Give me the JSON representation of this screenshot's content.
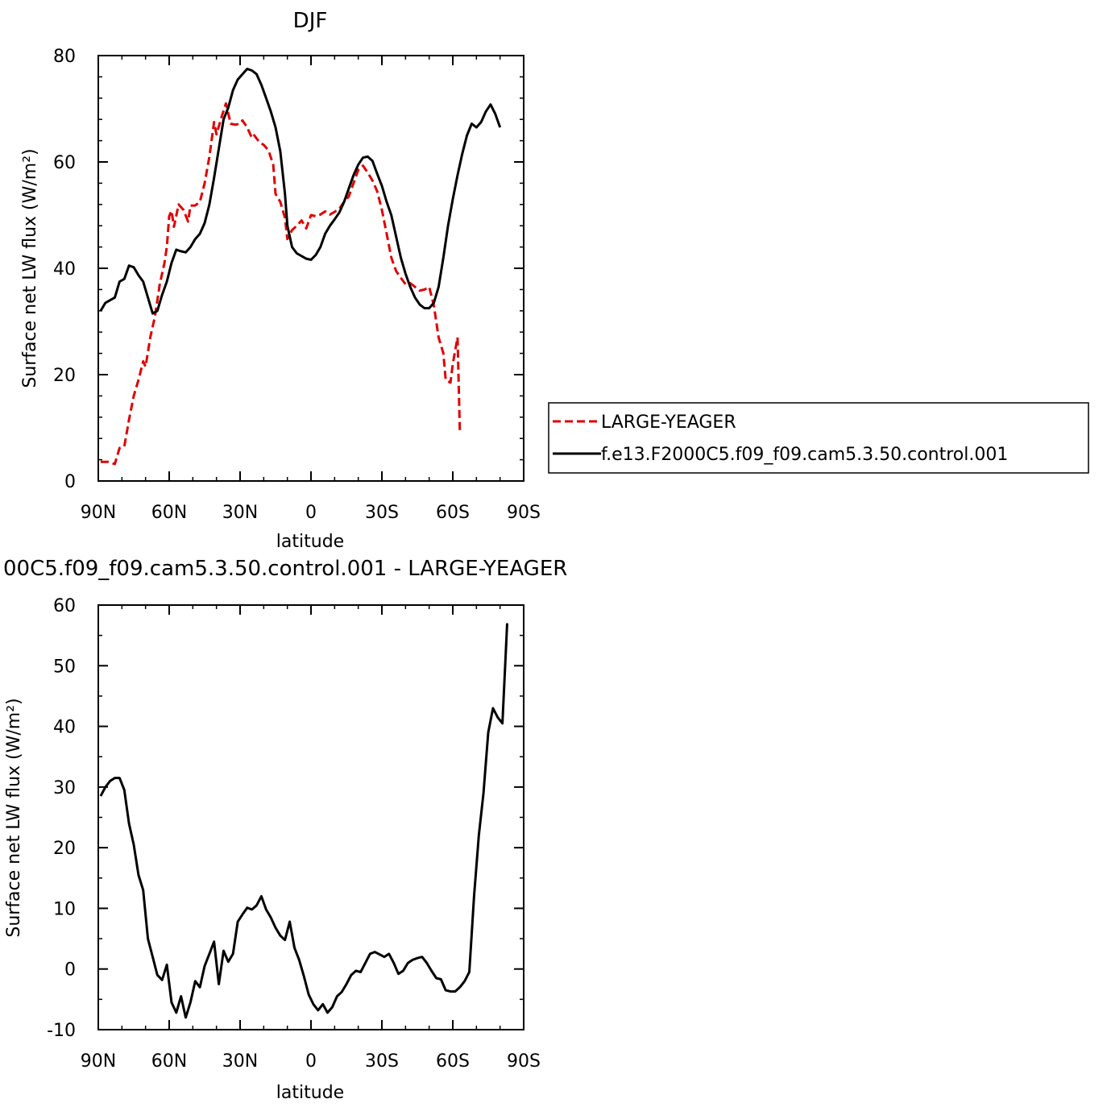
{
  "chart_data": [
    {
      "type": "line",
      "title": "DJF",
      "xlabel": "latitude",
      "ylabel": "Surface net LW flux (W/m²)",
      "xlim": [
        90,
        -90
      ],
      "ylim": [
        0,
        80
      ],
      "xticks": [
        {
          "value": 90,
          "label": "90N"
        },
        {
          "value": 60,
          "label": "60N"
        },
        {
          "value": 30,
          "label": "30N"
        },
        {
          "value": 0,
          "label": "0"
        },
        {
          "value": -30,
          "label": "30S"
        },
        {
          "value": -60,
          "label": "60S"
        },
        {
          "value": -90,
          "label": "90S"
        }
      ],
      "yticks": [
        {
          "value": 0,
          "label": "0"
        },
        {
          "value": 20,
          "label": "20"
        },
        {
          "value": 40,
          "label": "40"
        },
        {
          "value": 60,
          "label": "60"
        },
        {
          "value": 80,
          "label": "80"
        }
      ],
      "legend_position": "right",
      "series": [
        {
          "name": "LARGE-YEAGER",
          "color": "#e00000",
          "dash": "dashed",
          "points": [
            [
              89,
              3.6
            ],
            [
              86,
              3.6
            ],
            [
              83,
              3.2
            ],
            [
              81,
              6.2
            ],
            [
              79,
              6.5
            ],
            [
              77,
              11.5
            ],
            [
              75,
              16
            ],
            [
              73,
              19
            ],
            [
              71,
              22.5
            ],
            [
              70,
              21.5
            ],
            [
              68,
              27
            ],
            [
              66,
              31
            ],
            [
              64,
              37
            ],
            [
              62,
              41
            ],
            [
              61,
              44
            ],
            [
              60,
              49.8
            ],
            [
              59,
              50.8
            ],
            [
              58,
              47.8
            ],
            [
              56,
              52
            ],
            [
              54,
              51
            ],
            [
              52,
              48.8
            ],
            [
              51,
              51.8
            ],
            [
              49,
              51.8
            ],
            [
              47,
              52.5
            ],
            [
              45,
              56
            ],
            [
              43,
              61
            ],
            [
              41,
              67.5
            ],
            [
              40,
              65.2
            ],
            [
              38,
              68.2
            ],
            [
              36,
              71
            ],
            [
              34,
              67.2
            ],
            [
              32,
              67
            ],
            [
              30,
              67.2
            ],
            [
              29,
              67.8
            ],
            [
              27,
              66.5
            ],
            [
              25,
              64.5
            ],
            [
              24,
              65
            ],
            [
              22,
              63.8
            ],
            [
              20,
              63.2
            ],
            [
              18,
              62.2
            ],
            [
              16,
              59.5
            ],
            [
              15,
              54
            ],
            [
              13,
              52.5
            ],
            [
              11,
              49.5
            ],
            [
              10,
              45.5
            ],
            [
              8,
              47.2
            ],
            [
              6,
              48
            ],
            [
              4,
              49
            ],
            [
              2,
              47.5
            ],
            [
              0,
              50
            ],
            [
              -2,
              49.8
            ],
            [
              -4,
              50.1
            ],
            [
              -6,
              50.7
            ],
            [
              -8,
              50.1
            ],
            [
              -10,
              50.6
            ],
            [
              -12,
              51.2
            ],
            [
              -14,
              52.5
            ],
            [
              -16,
              53.5
            ],
            [
              -18,
              56
            ],
            [
              -20,
              58.5
            ],
            [
              -22,
              59.3
            ],
            [
              -24,
              58
            ],
            [
              -26,
              56.5
            ],
            [
              -28,
              54.5
            ],
            [
              -30,
              51
            ],
            [
              -32,
              46.5
            ],
            [
              -34,
              42
            ],
            [
              -36,
              39.5
            ],
            [
              -38,
              38.2
            ],
            [
              -40,
              37
            ],
            [
              -42,
              37.2
            ],
            [
              -44,
              36.5
            ],
            [
              -46,
              35.8
            ],
            [
              -48,
              36
            ],
            [
              -50,
              36.5
            ],
            [
              -52,
              33
            ],
            [
              -54,
              27
            ],
            [
              -56,
              24
            ],
            [
              -57,
              19
            ],
            [
              -59,
              18.5
            ],
            [
              -60,
              22
            ],
            [
              -62,
              27
            ],
            [
              -63,
              9
            ]
          ]
        },
        {
          "name": "f.e13.F2000C5.f09_f09.cam5.3.50.control.001",
          "color": "#000000",
          "dash": "solid",
          "points": [
            [
              89,
              32
            ],
            [
              87,
              33.5
            ],
            [
              85,
              34
            ],
            [
              83,
              34.5
            ],
            [
              81,
              37.5
            ],
            [
              79,
              38
            ],
            [
              77,
              40.5
            ],
            [
              75,
              40.2
            ],
            [
              73,
              38.7
            ],
            [
              71,
              37.5
            ],
            [
              69,
              34.5
            ],
            [
              67,
              31.5
            ],
            [
              65,
              32
            ],
            [
              63,
              35
            ],
            [
              61,
              37.5
            ],
            [
              59,
              41
            ],
            [
              57,
              43.5
            ],
            [
              55,
              43.2
            ],
            [
              53,
              43
            ],
            [
              51,
              44
            ],
            [
              49,
              45.5
            ],
            [
              47,
              46.5
            ],
            [
              45,
              48.5
            ],
            [
              43,
              52
            ],
            [
              41,
              57
            ],
            [
              39,
              62.5
            ],
            [
              37,
              68
            ],
            [
              35,
              70.2
            ],
            [
              33,
              73.5
            ],
            [
              31,
              75.5
            ],
            [
              29,
              76.5
            ],
            [
              27,
              77.5
            ],
            [
              25,
              77.2
            ],
            [
              23,
              76.5
            ],
            [
              21,
              74.5
            ],
            [
              19,
              72
            ],
            [
              17,
              69.5
            ],
            [
              15,
              66.5
            ],
            [
              13,
              62
            ],
            [
              11,
              54
            ],
            [
              10,
              48
            ],
            [
              8,
              44
            ],
            [
              6,
              42.8
            ],
            [
              4,
              42.3
            ],
            [
              2,
              41.8
            ],
            [
              0,
              41.6
            ],
            [
              -2,
              42.5
            ],
            [
              -4,
              44
            ],
            [
              -6,
              46.5
            ],
            [
              -8,
              48
            ],
            [
              -10,
              49.2
            ],
            [
              -12,
              50.5
            ],
            [
              -14,
              52.5
            ],
            [
              -16,
              55
            ],
            [
              -18,
              57.5
            ],
            [
              -20,
              59.5
            ],
            [
              -22,
              60.8
            ],
            [
              -24,
              61
            ],
            [
              -26,
              60.2
            ],
            [
              -28,
              57.8
            ],
            [
              -30,
              55.5
            ],
            [
              -32,
              52.5
            ],
            [
              -34,
              50
            ],
            [
              -36,
              46
            ],
            [
              -38,
              42
            ],
            [
              -40,
              39
            ],
            [
              -42,
              36.5
            ],
            [
              -44,
              34.5
            ],
            [
              -46,
              33.2
            ],
            [
              -48,
              32.5
            ],
            [
              -50,
              32.5
            ],
            [
              -52,
              33.5
            ],
            [
              -54,
              36.5
            ],
            [
              -56,
              42
            ],
            [
              -58,
              48
            ],
            [
              -60,
              53
            ],
            [
              -62,
              57.5
            ],
            [
              -64,
              61.5
            ],
            [
              -66,
              65
            ],
            [
              -68,
              67.2
            ],
            [
              -70,
              66.5
            ],
            [
              -72,
              67.5
            ],
            [
              -74,
              69.5
            ],
            [
              -76,
              70.8
            ],
            [
              -78,
              69
            ],
            [
              -80,
              66.5
            ]
          ]
        }
      ]
    },
    {
      "type": "line",
      "title": "00C5.f09_f09.cam5.3.50.control.001 - LARGE-YEAGER",
      "xlabel": "latitude",
      "ylabel": "Surface net LW flux (W/m²)",
      "xlim": [
        90,
        -90
      ],
      "ylim": [
        -10,
        60
      ],
      "xticks": [
        {
          "value": 90,
          "label": "90N"
        },
        {
          "value": 60,
          "label": "60N"
        },
        {
          "value": 30,
          "label": "30N"
        },
        {
          "value": 0,
          "label": "0"
        },
        {
          "value": -30,
          "label": "30S"
        },
        {
          "value": -60,
          "label": "60S"
        },
        {
          "value": -90,
          "label": "90S"
        }
      ],
      "yticks": [
        {
          "value": -10,
          "label": "-10"
        },
        {
          "value": 0,
          "label": "0"
        },
        {
          "value": 10,
          "label": "10"
        },
        {
          "value": 20,
          "label": "20"
        },
        {
          "value": 30,
          "label": "30"
        },
        {
          "value": 40,
          "label": "40"
        },
        {
          "value": 50,
          "label": "50"
        },
        {
          "value": 60,
          "label": "60"
        }
      ],
      "series": [
        {
          "color": "#000000",
          "dash": "solid",
          "points": [
            [
              89,
              28.5
            ],
            [
              87,
              30
            ],
            [
              85,
              31
            ],
            [
              83,
              31.5
            ],
            [
              81,
              31.5
            ],
            [
              79,
              29.5
            ],
            [
              77,
              24
            ],
            [
              75,
              20.5
            ],
            [
              73,
              15.5
            ],
            [
              71,
              13
            ],
            [
              69,
              5
            ],
            [
              67,
              2
            ],
            [
              65,
              -1
            ],
            [
              63,
              -1.8
            ],
            [
              61,
              0.7
            ],
            [
              59,
              -5.5
            ],
            [
              57,
              -7.2
            ],
            [
              55,
              -4.5
            ],
            [
              53,
              -8
            ],
            [
              51,
              -5.5
            ],
            [
              49,
              -2
            ],
            [
              47,
              -3
            ],
            [
              45,
              0.5
            ],
            [
              43,
              2.5
            ],
            [
              41,
              4.5
            ],
            [
              39,
              -2.5
            ],
            [
              37,
              3
            ],
            [
              35,
              1.2
            ],
            [
              33,
              2.5
            ],
            [
              31,
              7.8
            ],
            [
              29,
              9
            ],
            [
              27,
              10.1
            ],
            [
              25,
              9.8
            ],
            [
              23,
              10.5
            ],
            [
              21,
              12
            ],
            [
              19,
              9.8
            ],
            [
              17,
              8.5
            ],
            [
              15,
              6.8
            ],
            [
              13,
              5.5
            ],
            [
              11,
              4.8
            ],
            [
              9,
              7.8
            ],
            [
              7,
              3.5
            ],
            [
              5,
              1.5
            ],
            [
              3,
              -1.2
            ],
            [
              1,
              -4.2
            ],
            [
              -1,
              -5.8
            ],
            [
              -3,
              -6.8
            ],
            [
              -5,
              -5.8
            ],
            [
              -7,
              -7.2
            ],
            [
              -9,
              -6.3
            ],
            [
              -11,
              -4.5
            ],
            [
              -13,
              -3.8
            ],
            [
              -15,
              -2.5
            ],
            [
              -17,
              -1
            ],
            [
              -19,
              -0.3
            ],
            [
              -21,
              -0.5
            ],
            [
              -23,
              1
            ],
            [
              -25,
              2.5
            ],
            [
              -27,
              2.8
            ],
            [
              -29,
              2.4
            ],
            [
              -31,
              2
            ],
            [
              -33,
              2.5
            ],
            [
              -35,
              1
            ],
            [
              -37,
              -0.8
            ],
            [
              -39,
              -0.3
            ],
            [
              -41,
              1
            ],
            [
              -43,
              1.5
            ],
            [
              -45,
              1.8
            ],
            [
              -47,
              2
            ],
            [
              -49,
              1
            ],
            [
              -51,
              -0.3
            ],
            [
              -53,
              -1.5
            ],
            [
              -55,
              -1.7
            ],
            [
              -57,
              -3.5
            ],
            [
              -59,
              -3.7
            ],
            [
              -61,
              -3.7
            ],
            [
              -63,
              -3
            ],
            [
              -65,
              -2
            ],
            [
              -67,
              -0.5
            ],
            [
              -69,
              12
            ],
            [
              -71,
              22
            ],
            [
              -73,
              29
            ],
            [
              -75,
              39
            ],
            [
              -77,
              43
            ],
            [
              -79,
              41.5
            ],
            [
              -81,
              40.5
            ],
            [
              -83,
              57
            ]
          ]
        }
      ]
    }
  ],
  "legend": {
    "items": [
      "LARGE-YEAGER",
      "f.e13.F2000C5.f09_f09.cam5.3.50.control.001"
    ]
  }
}
